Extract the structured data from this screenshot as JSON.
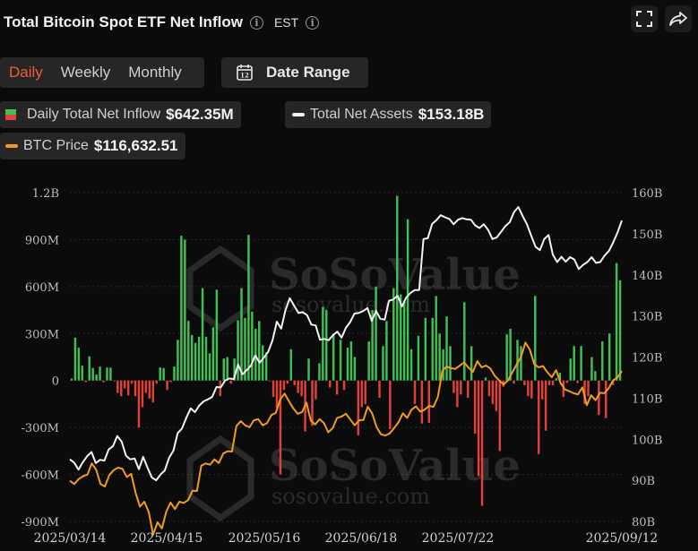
{
  "header": {
    "title": "Total Bitcoin Spot ETF Net Inflow",
    "timezone": "EST"
  },
  "tabs": [
    {
      "label": "Daily",
      "active": true
    },
    {
      "label": "Weekly",
      "active": false
    },
    {
      "label": "Monthly",
      "active": false
    }
  ],
  "date_range_label": "Date Range",
  "calendar_icon_day": "12",
  "legend": [
    {
      "label": "Daily Total Net Inflow",
      "value": "$642.35M"
    },
    {
      "label": "Total Net Assets",
      "value": "$153.18B"
    },
    {
      "label": "BTC Price",
      "value": "$116,632.51"
    }
  ],
  "watermark": {
    "brand": "SoSoValue",
    "url": "sosovalue.com"
  },
  "colors": {
    "inflow_positive": "#3fbf54",
    "inflow_negative": "#e0413a",
    "total_net_assets": "#f2f2f2",
    "btc_price": "#f29c1f",
    "active_tab": "#f05a3c"
  },
  "chart_data": {
    "type": "bar",
    "title": "Total Bitcoin Spot ETF Net Inflow",
    "x_tick_labels": [
      "2025/03/14",
      "2025/04/15",
      "2025/05/16",
      "2025/06/18",
      "2025/07/22",
      "2025/09/12"
    ],
    "left_axis": {
      "ticks": [
        "1.2B",
        "900M",
        "600M",
        "300M",
        "0",
        "-300M",
        "-600M",
        "-900M"
      ],
      "range": [
        -900,
        1200
      ],
      "unit": "M"
    },
    "right_axis": {
      "ticks": [
        "160B",
        "150B",
        "140B",
        "130B",
        "120B",
        "110B",
        "100B",
        "90B",
        "80B"
      ],
      "range": [
        80,
        160
      ],
      "unit": "B"
    },
    "grid": true,
    "series": [
      {
        "name": "Daily Total Net Inflow",
        "axis": "left",
        "values": [
          13,
          274,
          209,
          95,
          -10,
          155,
          80,
          38,
          89,
          -12,
          83,
          82,
          -5,
          -80,
          -100,
          -50,
          -95,
          -20,
          -100,
          -300,
          -170,
          -80,
          -115,
          -140,
          -20,
          84,
          80,
          -60,
          -10,
          90,
          260,
          925,
          900,
          381,
          290,
          240,
          280,
          590,
          280,
          174,
          340,
          580,
          -100,
          140,
          150,
          -20,
          140,
          385,
          590,
          400,
          930,
          440,
          330,
          380,
          225,
          180,
          -5,
          -105,
          -175,
          -600,
          -60,
          -20,
          200,
          -30,
          -80,
          -100,
          -325,
          140,
          -290,
          -120,
          110,
          470,
          450,
          -45,
          300,
          -90,
          260,
          -60,
          210,
          250,
          150,
          -350,
          -170,
          -150,
          250,
          450,
          600,
          -110,
          220,
          380,
          -310,
          590,
          1180,
          550,
          500,
          1030,
          200,
          -150,
          285,
          -275,
          400,
          -270,
          400,
          540,
          300,
          200,
          410,
          220,
          -80,
          -170,
          -90,
          500,
          -110,
          220,
          -340,
          -610,
          -800,
          20,
          -100,
          -150,
          -195,
          -450,
          -40,
          295,
          330,
          -20,
          260,
          220,
          -30,
          -100,
          -115,
          540,
          -470,
          -120,
          -320,
          -30,
          -30,
          15,
          50,
          -105,
          -15,
          140,
          220,
          -17,
          220,
          -150,
          -100,
          150,
          60,
          -220,
          250,
          -240,
          300,
          -30,
          750,
          640
        ],
        "note": "approximate daily values in $M, read from bar heights"
      },
      {
        "name": "Total Net Assets",
        "axis": "right",
        "values": [
          95.1,
          94.3,
          92.6,
          94.4,
          95.9,
          96.9,
          94.2,
          95.0,
          94.8,
          97.5,
          98.3,
          100.8,
          99.4,
          96.0,
          95.1,
          95.3,
          92.7,
          95.7,
          93.1,
          90.7,
          90.0,
          91.4,
          92.4,
          95.5,
          97.2,
          101.5,
          102.6,
          105.2,
          107.5,
          106.6,
          108.2,
          109.2,
          109.7,
          110.3,
          112.7,
          112.6,
          114.3,
          114.8,
          114.6,
          118.2,
          115.8,
          116.8,
          117.9,
          120.4,
          118.6,
          119.9,
          121.3,
          124.1,
          128.6,
          126.9,
          131.4,
          134.3,
          132.5,
          130.7,
          130.9,
          130.2,
          127.9,
          127.7,
          124.2,
          124.4,
          124.1,
          125.3,
          126.2,
          124.7,
          127.1,
          128.5,
          130.6,
          130.7,
          131.2,
          131.9,
          128.8,
          131.2,
          129.3,
          129.1,
          133.7,
          134.0,
          134.9,
          132.3,
          134.5,
          135.6,
          136.3,
          136.3,
          148.7,
          148.9,
          152.4,
          153.3,
          154.5,
          154.0,
          153.6,
          152.3,
          153.4,
          153.8,
          153.5,
          153.4,
          152.0,
          151.4,
          152.3,
          150.9,
          148.7,
          149.1,
          150.5,
          151.9,
          152.8,
          155.3,
          156.5,
          154.3,
          152.3,
          149.5,
          146.8,
          146.0,
          148.7,
          149.7,
          144.9,
          143.1,
          144.4,
          143.2,
          144.3,
          143.7,
          141.4,
          142.4,
          143.1,
          144.3,
          142.9,
          143.1,
          144.7,
          145.8,
          147.9,
          150.3,
          153.2
        ]
      },
      {
        "name": "BTC Price",
        "axis": "right",
        "values": [
          89.9,
          89.1,
          90.3,
          91.0,
          91.4,
          94.1,
          92.6,
          89.1,
          88.5,
          91.3,
          92.5,
          93.1,
          92.8,
          90.8,
          91.6,
          87.0,
          83.6,
          84.8,
          82.3,
          76.8,
          79.8,
          78.3,
          82.4,
          84.6,
          83.0,
          84.8,
          84.5,
          85.2,
          87.5,
          87.4,
          93.6,
          94.1,
          93.8,
          95.1,
          94.2,
          96.5,
          97.1,
          97.0,
          103.2,
          104.4,
          103.4,
          102.9,
          104.6,
          104.9,
          103.4,
          103.9,
          105.9,
          106.4,
          109.7,
          111.1,
          109.3,
          107.5,
          106.2,
          106.6,
          108.9,
          104.5,
          103.6,
          104.9,
          103.9,
          101.7,
          102.7,
          105.2,
          105.5,
          106.2,
          104.8,
          103.4,
          104.6,
          104.7,
          107.9,
          106.3,
          103.0,
          101.2,
          100.9,
          101.4,
          102.7,
          104.1,
          106.3,
          105.2,
          107.2,
          108.0,
          106.7,
          107.2,
          108.1,
          107.9,
          110.3,
          116.6,
          117.7,
          117.3,
          117.1,
          117.9,
          118.7,
          117.4,
          116.4,
          119.0,
          117.5,
          117.9,
          117.2,
          115.4,
          114.3,
          113.3,
          114.3,
          116.3,
          118.2,
          120.1,
          123.5,
          121.8,
          118.3,
          117.5,
          117.8,
          116.3,
          115.1,
          116.8,
          113.7,
          112.1,
          111.7,
          111.2,
          110.9,
          112.6,
          108.3,
          110.7,
          109.5,
          111.3,
          111.2,
          112.4,
          114.3,
          115.0,
          116.6
        ]
      }
    ]
  }
}
